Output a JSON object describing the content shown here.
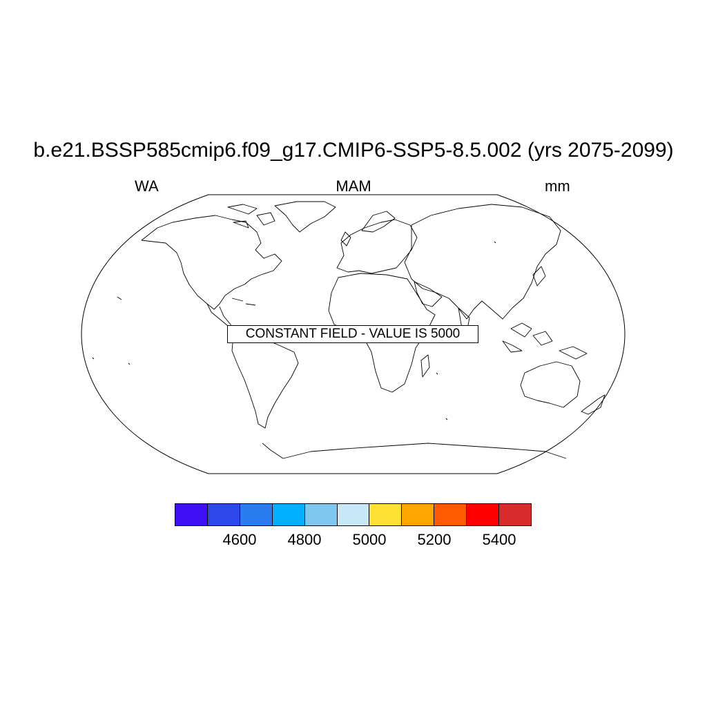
{
  "title": "b.e21.BSSP585cmip6.f09_g17.CMIP6-SSP5-8.5.002 (yrs 2075-2099)",
  "left_label": "WA",
  "center_label": "MAM",
  "right_label": "mm",
  "notice": "CONSTANT FIELD - VALUE IS 5000",
  "map": {
    "projection": "robinson",
    "coastlines": true,
    "constant_value": 5000
  },
  "colorbar": {
    "colors": [
      "#3f0ff5",
      "#2c47eb",
      "#2a7cf0",
      "#02b0ff",
      "#7ec8f0",
      "#c8e8f8",
      "#ffe135",
      "#ffa600",
      "#ff5a00",
      "#ff0000",
      "#d92b2b"
    ],
    "labels": [
      "4600",
      "4800",
      "5000",
      "5200",
      "5400"
    ]
  }
}
